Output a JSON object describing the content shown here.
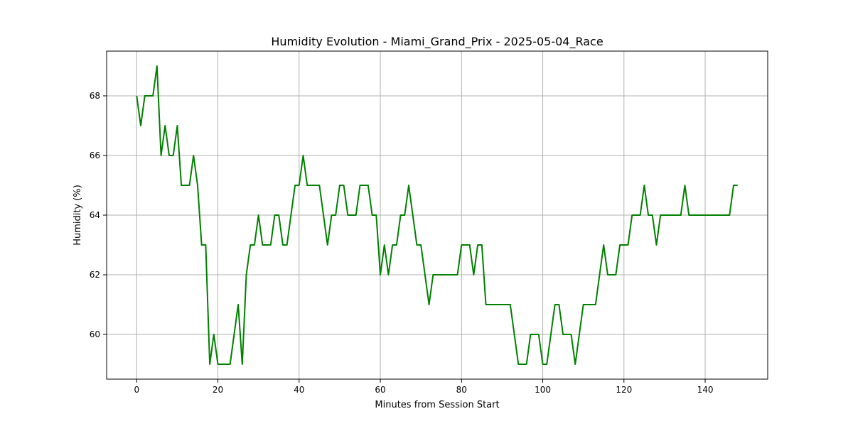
{
  "chart_data": {
    "type": "line",
    "title": "Humidity Evolution - Miami_Grand_Prix - 2025-05-04_Race",
    "xlabel": "Minutes from Session Start",
    "ylabel": "Humidity (%)",
    "xlim": [
      -7.4,
      155.4
    ],
    "ylim": [
      58.5,
      69.5
    ],
    "xticks": [
      0,
      20,
      40,
      60,
      80,
      100,
      120,
      140
    ],
    "yticks": [
      60,
      62,
      64,
      66,
      68
    ],
    "grid": true,
    "legend": "none",
    "series": [
      {
        "color": "#008000",
        "x": [
          0,
          1,
          2,
          3,
          4,
          5,
          6,
          7,
          8,
          9,
          10,
          11,
          12,
          13,
          14,
          15,
          16,
          17,
          18,
          19,
          20,
          21,
          22,
          23,
          24,
          25,
          26,
          27,
          28,
          29,
          30,
          31,
          32,
          33,
          34,
          35,
          36,
          37,
          38,
          39,
          40,
          41,
          42,
          43,
          44,
          45,
          46,
          47,
          48,
          49,
          50,
          51,
          52,
          53,
          54,
          55,
          56,
          57,
          58,
          59,
          60,
          61,
          62,
          63,
          64,
          65,
          66,
          67,
          68,
          69,
          70,
          71,
          72,
          73,
          74,
          75,
          76,
          77,
          78,
          79,
          80,
          81,
          82,
          83,
          84,
          85,
          86,
          87,
          88,
          89,
          90,
          91,
          92,
          93,
          94,
          95,
          96,
          97,
          98,
          99,
          100,
          101,
          102,
          103,
          104,
          105,
          106,
          107,
          108,
          109,
          110,
          111,
          112,
          113,
          114,
          115,
          116,
          117,
          118,
          119,
          120,
          121,
          122,
          123,
          124,
          125,
          126,
          127,
          128,
          129,
          130,
          131,
          132,
          133,
          134,
          135,
          136,
          137,
          138,
          139,
          140,
          141,
          142,
          143,
          144,
          145,
          146,
          147,
          148
        ],
        "values": [
          68,
          67,
          68,
          68,
          68,
          69,
          66,
          67,
          66,
          66,
          67,
          65,
          65,
          65,
          66,
          65,
          63,
          63,
          59,
          60,
          59,
          59,
          59,
          59,
          60,
          61,
          59,
          62,
          63,
          63,
          64,
          63,
          63,
          63,
          64,
          64,
          63,
          63,
          64,
          65,
          65,
          66,
          65,
          65,
          65,
          65,
          64,
          63,
          64,
          64,
          65,
          65,
          64,
          64,
          64,
          65,
          65,
          65,
          64,
          64,
          62,
          63,
          62,
          63,
          63,
          64,
          64,
          65,
          64,
          63,
          63,
          62,
          61,
          62,
          62,
          62,
          62,
          62,
          62,
          62,
          63,
          63,
          63,
          62,
          63,
          63,
          61,
          61,
          61,
          61,
          61,
          61,
          61,
          60,
          59,
          59,
          59,
          60,
          60,
          60,
          59,
          59,
          60,
          61,
          61,
          60,
          60,
          60,
          59,
          60,
          61,
          61,
          61,
          61,
          62,
          63,
          62,
          62,
          62,
          63,
          63,
          63,
          64,
          64,
          64,
          65,
          64,
          64,
          63,
          64,
          64,
          64,
          64,
          64,
          64,
          65,
          64,
          64,
          64,
          64,
          64,
          64,
          64,
          64,
          64,
          64,
          64,
          65,
          65
        ]
      }
    ]
  }
}
